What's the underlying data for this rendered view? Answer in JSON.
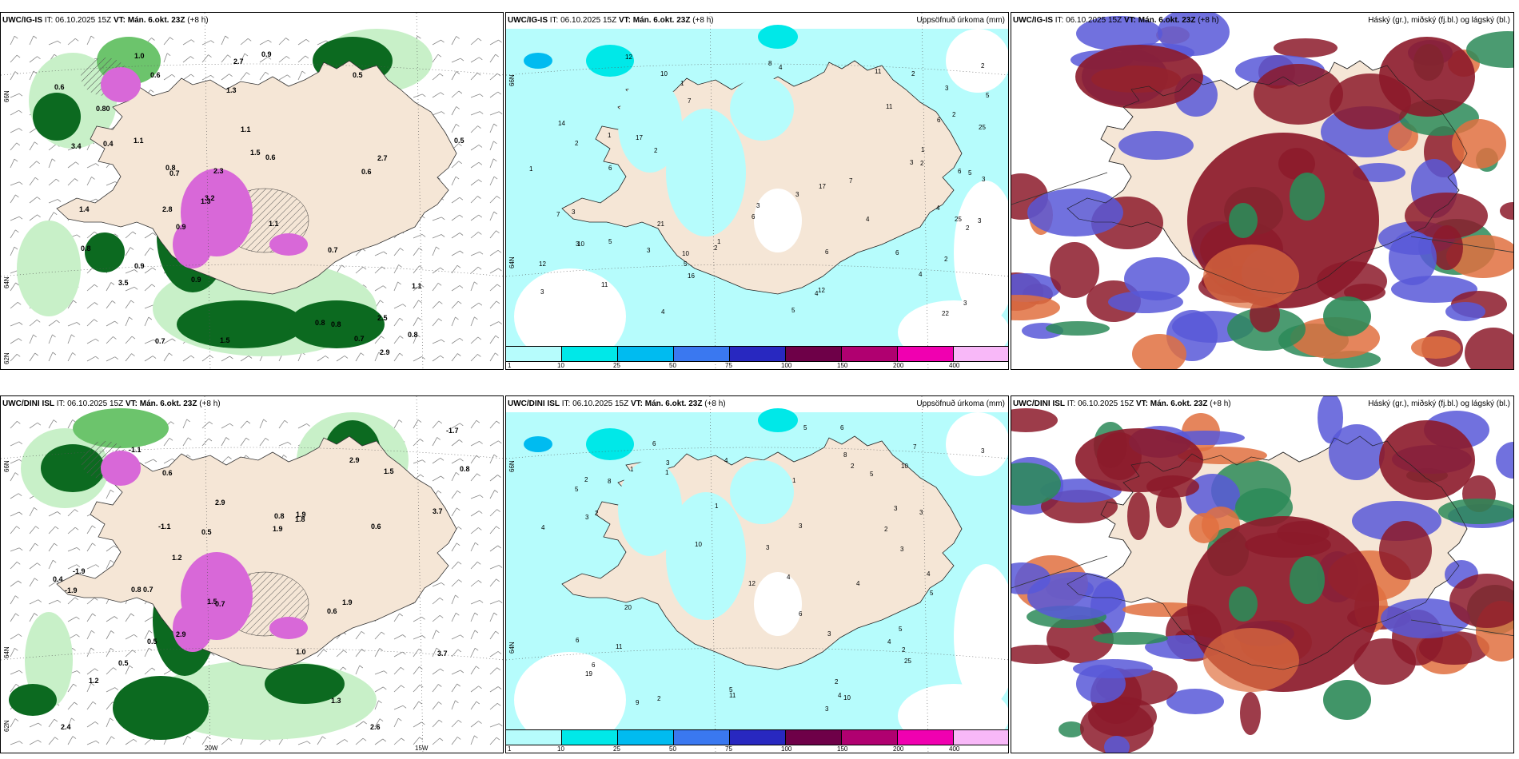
{
  "panels": [
    {
      "id": "p1",
      "model": "UWC/IG-IS",
      "it_label": "IT:",
      "it_value": "06.10.2025 15Z",
      "vt_label": "VT:",
      "vt_value": "Mán. 6.okt. 23Z",
      "lead": "(+8 h)",
      "right_title": "",
      "lat_labels": [
        "66N",
        "64N",
        "62N"
      ],
      "lon_labels": [],
      "values": [
        "3.5",
        "0.8",
        "1.1",
        "1.4",
        "0.6",
        "1.0",
        "1.5",
        "2.3",
        "0.9",
        "0.6",
        "1.3",
        "0.8",
        "0.5",
        "0.7",
        "0.9",
        "3.2",
        "1.1",
        "1.5",
        "2.5",
        "0.4",
        "0.80",
        "0.9",
        "0.6",
        "0.7",
        "0.7",
        "2.7",
        "0.8",
        "0.5",
        "0.6",
        "0.8",
        "2.9",
        "2.8",
        "1.1",
        "3.4",
        "0.9",
        "2.7",
        "0.8",
        "0.7",
        "1.3",
        "1.1"
      ]
    },
    {
      "id": "p2",
      "model": "UWC/IG-IS",
      "it_label": "IT:",
      "it_value": "06.10.2025 15Z",
      "vt_label": "VT:",
      "vt_value": "Mán. 6.okt. 23Z",
      "lead": "(+8 h)",
      "right_title": "Uppsöfnuð úrkoma (mm)",
      "lat_labels": [
        "66N",
        "64N"
      ],
      "values": [
        "17",
        "10",
        "14",
        "16",
        "25",
        "5",
        "22",
        "21",
        "11",
        "12",
        "8",
        "12",
        "17",
        "25",
        "4",
        "6",
        "3",
        "7",
        "3",
        "1",
        "3",
        "2",
        "3",
        "4",
        "5",
        "3",
        "6",
        "2",
        "3",
        "7",
        "2",
        "3",
        "3",
        "1",
        "2",
        "4",
        "6",
        "3",
        "2",
        "2",
        "12",
        "6",
        "11",
        "4",
        "2",
        "10",
        "5",
        "3",
        "6",
        "7",
        "11",
        "1",
        "2",
        "4",
        "2",
        "10",
        "5",
        "6",
        "3",
        "4",
        "5",
        "1",
        "1"
      ],
      "colorbar": {
        "colors": [
          "#b6fcfc",
          "#00e8e8",
          "#00bbf0",
          "#3a78f0",
          "#2828c0",
          "#6e0048",
          "#b00070",
          "#f000b0",
          "#f8b8f8"
        ],
        "labels": [
          "1",
          "10",
          "25",
          "50",
          "75",
          "100",
          "150",
          "200",
          "400"
        ]
      }
    },
    {
      "id": "p3",
      "model": "UWC/IG-IS",
      "it_label": "IT:",
      "it_value": "06.10.2025 15Z",
      "vt_label": "VT:",
      "vt_value": "Mán. 6.okt. 23Z",
      "lead": "(+8 h)",
      "right_title": "Háský (gr.), miðský (fj.bl.) og lágský (bl.)",
      "values": []
    },
    {
      "id": "p4",
      "model": "UWC/DINI ISL",
      "it_label": "IT:",
      "it_value": "06.10.2025 15Z",
      "vt_label": "VT:",
      "vt_value": "Mán. 6.okt. 23Z",
      "lead": "(+8 h)",
      "right_title": "",
      "lat_labels": [
        "66N",
        "64N",
        "62N"
      ],
      "lon_labels": [
        "20W",
        "15W"
      ],
      "values": [
        "1.5",
        "0.5",
        "0.6",
        "1.9",
        "1.2",
        "0.8",
        "1.0",
        "1.9",
        "1.2",
        "2.9",
        "-1.1",
        "-1.1",
        "0.4",
        "0.7",
        "0.6",
        "-1.9",
        "2.4",
        "0.5",
        "2.9",
        "3.7",
        "2.6",
        "0.7",
        "0.6",
        "3.7",
        "2.9",
        "1.5",
        "-1.7",
        "-1.9",
        "1.8",
        "0.8",
        "1.9",
        "0.5",
        "0.8",
        "1.3"
      ]
    },
    {
      "id": "p5",
      "model": "UWC/DINI ISL",
      "it_label": "IT:",
      "it_value": "06.10.2025 15Z",
      "vt_label": "VT:",
      "vt_value": "Mán. 6.okt. 23Z",
      "lead": "(+8 h)",
      "right_title": "Uppsöfnuð úrkoma (mm)",
      "lat_labels": [
        "66N",
        "64N"
      ],
      "values": [
        "6",
        "3",
        "4",
        "5",
        "10",
        "19",
        "25",
        "12",
        "8",
        "5",
        "6",
        "6",
        "20",
        "3",
        "5",
        "4",
        "2",
        "3",
        "2",
        "1",
        "5",
        "9",
        "10",
        "2",
        "1",
        "3",
        "7",
        "4",
        "6",
        "11",
        "8",
        "3",
        "2",
        "5",
        "6",
        "2",
        "3",
        "10",
        "11",
        "4",
        "3",
        "5",
        "1",
        "2",
        "3",
        "4",
        "2",
        "4",
        "3",
        "1",
        "3",
        "4"
      ],
      "colorbar": {
        "colors": [
          "#b6fcfc",
          "#00e8e8",
          "#00bbf0",
          "#3a78f0",
          "#2828c0",
          "#6e0048",
          "#b00070",
          "#f000b0",
          "#f8b8f8"
        ],
        "labels": [
          "1",
          "10",
          "25",
          "50",
          "75",
          "100",
          "150",
          "200",
          "400"
        ]
      }
    },
    {
      "id": "p6",
      "model": "UWC/DINI ISL",
      "it_label": "IT:",
      "it_value": "06.10.2025 15Z",
      "vt_label": "VT:",
      "vt_value": "Mán. 6.okt. 23Z",
      "lead": "(+8 h)",
      "right_title": "Háský (gr.), miðský (fj.bl.) og lágský (bl.)",
      "values": []
    }
  ],
  "colors": {
    "land": "#f5e6d6",
    "sea": "#ffffff",
    "precip_light": "#b6fcfc",
    "green_light": "#c8f0c8",
    "green_mid": "#6cc46c",
    "green_dark": "#0c6a20",
    "magenta": "#d868d8",
    "cloud_high": "#2c8a58",
    "cloud_mid": "#8c1a2a",
    "cloud_low": "#5858d8",
    "cloud_orange": "#e07040"
  }
}
